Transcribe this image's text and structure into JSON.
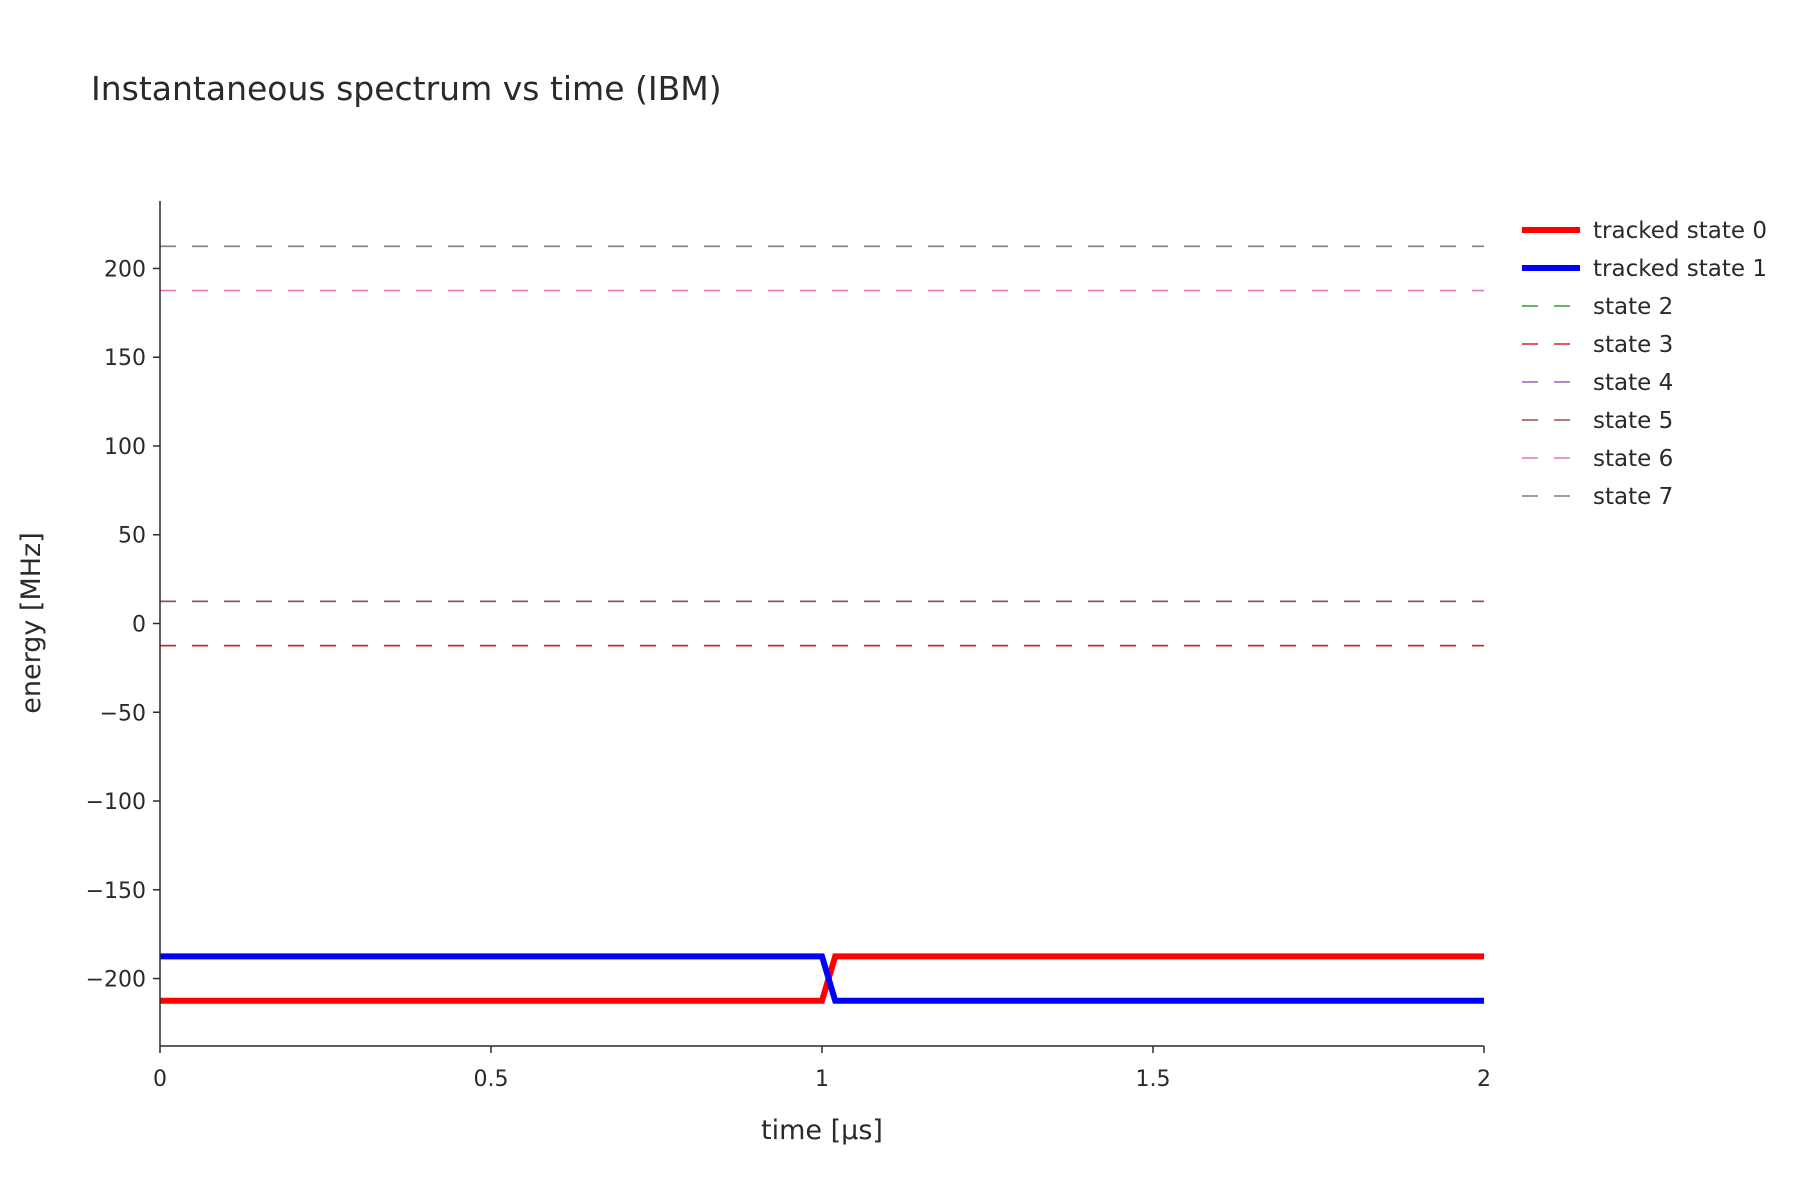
{
  "chart_data": {
    "type": "line",
    "title": "Instantaneous spectrum vs time (IBM)",
    "xlabel": "time [μs]",
    "ylabel": "energy [MHz]",
    "xlim": [
      0,
      2
    ],
    "ylim": [
      -238,
      238
    ],
    "x_ticks": [
      0,
      0.5,
      1,
      1.5,
      2
    ],
    "x_tick_labels": [
      "0",
      "0.5",
      "1",
      "1.5",
      "2"
    ],
    "y_ticks": [
      -200,
      -150,
      -100,
      -50,
      0,
      50,
      100,
      150,
      200
    ],
    "y_tick_labels": [
      "−200",
      "−150",
      "−100",
      "−50",
      "0",
      "50",
      "100",
      "150",
      "200"
    ],
    "grid": false,
    "legend_position": "top-right, outside plot",
    "series": [
      {
        "name": "tracked state 0",
        "color": "#ff0000",
        "dash": "solid",
        "x": [
          0,
          1.0,
          1.02,
          2
        ],
        "y": [
          -212.5,
          -212.5,
          -187.5,
          -187.5
        ]
      },
      {
        "name": "tracked state 1",
        "color": "#0000ff",
        "dash": "solid",
        "x": [
          0,
          1.0,
          1.02,
          2
        ],
        "y": [
          -187.5,
          -187.5,
          -212.5,
          -212.5
        ]
      },
      {
        "name": "state 2",
        "color": "#2ca02c",
        "dash": "dashed",
        "x": [
          0,
          2
        ],
        "y": [
          -12.5,
          -12.5
        ]
      },
      {
        "name": "state 3",
        "color": "#d62728",
        "dash": "dashed",
        "x": [
          0,
          2
        ],
        "y": [
          -12.5,
          -12.5
        ]
      },
      {
        "name": "state 4",
        "color": "#9467bd",
        "dash": "dashed",
        "x": [
          0,
          2
        ],
        "y": [
          12.5,
          12.5
        ]
      },
      {
        "name": "state 5",
        "color": "#8c564b",
        "dash": "dashed",
        "x": [
          0,
          2
        ],
        "y": [
          12.5,
          12.5
        ]
      },
      {
        "name": "state 6",
        "color": "#e377c2",
        "dash": "dashed",
        "x": [
          0,
          2
        ],
        "y": [
          187.5,
          187.5
        ]
      },
      {
        "name": "state 7",
        "color": "#7f7f7f",
        "dash": "dashed",
        "x": [
          0,
          2
        ],
        "y": [
          212.5,
          212.5
        ]
      }
    ]
  }
}
